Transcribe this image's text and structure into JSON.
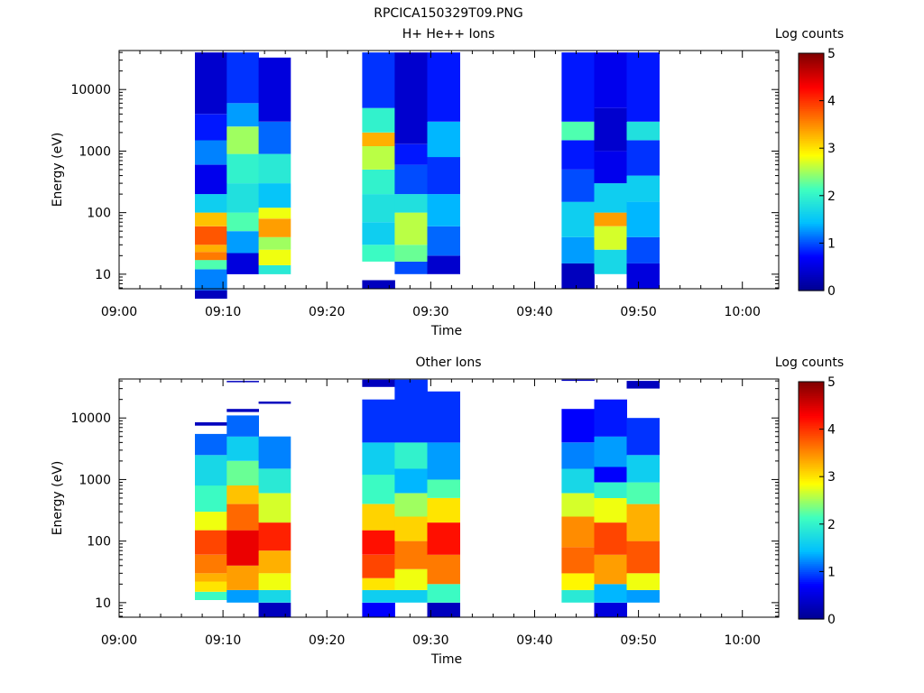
{
  "figure_title": "RPCICA150329T09.PNG",
  "colormap": [
    "#00008f",
    "#0000ff",
    "#00bfff",
    "#3fffbf",
    "#ffff00",
    "#ff7f00",
    "#ff0000",
    "#800000"
  ],
  "chart_data": [
    {
      "type": "heatmap",
      "title": "H+ He++ Ions",
      "xlabel": "Time",
      "ylabel": "Energy (eV)",
      "x_ticks": [
        "09:00",
        "09:10",
        "09:20",
        "09:30",
        "09:40",
        "09:50",
        "10:00"
      ],
      "x_range_minutes": [
        0,
        63.5
      ],
      "y_scale": "log",
      "y_range": [
        5.8,
        43000
      ],
      "y_ticks": [
        "10",
        "100",
        "1000",
        "10000"
      ],
      "colorbar": {
        "label": "Log counts",
        "range": [
          0,
          5
        ],
        "ticks": [
          "0",
          "1",
          "2",
          "3",
          "4",
          "5"
        ]
      },
      "blocks": [
        {
          "start_min": 7.3,
          "end_min": 16.5,
          "columns": 3
        },
        {
          "start_min": 23.4,
          "end_min": 32.8,
          "columns": 3
        },
        {
          "start_min": 42.6,
          "end_min": 52.0,
          "columns": 3
        }
      ],
      "columns": [
        [
          [
            4,
            5.5,
            0.3
          ],
          [
            5.5,
            12,
            1.2
          ],
          [
            12,
            17,
            2.2
          ],
          [
            17,
            23,
            3.6
          ],
          [
            23,
            30,
            3.3
          ],
          [
            30,
            60,
            3.8
          ],
          [
            60,
            100,
            3.2
          ],
          [
            100,
            200,
            1.6
          ],
          [
            200,
            600,
            0.6
          ],
          [
            600,
            1500,
            1.2
          ],
          [
            1500,
            4000,
            0.8
          ],
          [
            4000,
            40000,
            0.4
          ]
        ],
        [
          [
            10,
            22,
            0.5
          ],
          [
            22,
            50,
            1.3
          ],
          [
            50,
            100,
            2.2
          ],
          [
            100,
            300,
            1.8
          ],
          [
            300,
            900,
            2.0
          ],
          [
            900,
            2500,
            2.5
          ],
          [
            2500,
            6000,
            1.3
          ],
          [
            6000,
            40000,
            0.9
          ]
        ],
        [
          [
            10,
            14,
            1.9
          ],
          [
            14,
            25,
            2.8
          ],
          [
            25,
            40,
            2.5
          ],
          [
            40,
            80,
            3.4
          ],
          [
            80,
            120,
            2.8
          ],
          [
            120,
            300,
            1.5
          ],
          [
            300,
            900,
            1.9
          ],
          [
            900,
            3000,
            1.1
          ],
          [
            3000,
            33000,
            0.5
          ]
        ],
        [
          [
            5.8,
            8,
            0.3
          ],
          [
            16,
            30,
            2.1
          ],
          [
            30,
            70,
            1.6
          ],
          [
            70,
            200,
            1.8
          ],
          [
            200,
            500,
            2.0
          ],
          [
            500,
            1200,
            2.6
          ],
          [
            1200,
            2000,
            3.3
          ],
          [
            2000,
            5000,
            2.0
          ],
          [
            5000,
            40000,
            0.9
          ]
        ],
        [
          [
            10,
            16,
            1.0
          ],
          [
            16,
            30,
            2.3
          ],
          [
            30,
            100,
            2.6
          ],
          [
            100,
            200,
            1.8
          ],
          [
            200,
            600,
            1.0
          ],
          [
            600,
            1300,
            0.8
          ],
          [
            1300,
            40000,
            0.4
          ]
        ],
        [
          [
            10,
            20,
            0.4
          ],
          [
            20,
            60,
            1.1
          ],
          [
            60,
            200,
            1.4
          ],
          [
            200,
            800,
            0.9
          ],
          [
            800,
            3000,
            1.4
          ],
          [
            3000,
            40000,
            0.8
          ]
        ],
        [
          [
            5.8,
            15,
            0.3
          ],
          [
            15,
            40,
            1.3
          ],
          [
            40,
            150,
            1.6
          ],
          [
            150,
            500,
            1.0
          ],
          [
            500,
            1500,
            0.8
          ],
          [
            1500,
            3000,
            2.2
          ],
          [
            3000,
            40000,
            0.8
          ]
        ],
        [
          [
            10,
            25,
            1.7
          ],
          [
            25,
            60,
            2.7
          ],
          [
            60,
            100,
            3.4
          ],
          [
            100,
            300,
            1.6
          ],
          [
            300,
            1000,
            0.6
          ],
          [
            1000,
            5000,
            0.4
          ],
          [
            5000,
            40000,
            0.6
          ]
        ],
        [
          [
            5.8,
            15,
            0.5
          ],
          [
            15,
            40,
            1.0
          ],
          [
            40,
            150,
            1.4
          ],
          [
            150,
            400,
            1.6
          ],
          [
            400,
            1500,
            0.9
          ],
          [
            1500,
            3000,
            1.8
          ],
          [
            3000,
            40000,
            0.8
          ]
        ]
      ]
    },
    {
      "type": "heatmap",
      "title": "Other Ions",
      "xlabel": "Time",
      "ylabel": "Energy (eV)",
      "x_ticks": [
        "09:00",
        "09:10",
        "09:20",
        "09:30",
        "09:40",
        "09:50",
        "10:00"
      ],
      "x_range_minutes": [
        0,
        63.5
      ],
      "y_scale": "log",
      "y_range": [
        5.8,
        43000
      ],
      "y_ticks": [
        "10",
        "100",
        "1000",
        "10000"
      ],
      "colorbar": {
        "label": "Log counts",
        "range": [
          0,
          5
        ],
        "ticks": [
          "0",
          "1",
          "2",
          "3",
          "4",
          "5"
        ]
      },
      "blocks": [
        {
          "start_min": 7.3,
          "end_min": 16.5,
          "columns": 3
        },
        {
          "start_min": 23.4,
          "end_min": 32.8,
          "columns": 3
        },
        {
          "start_min": 42.6,
          "end_min": 52.0,
          "columns": 3
        }
      ],
      "columns": [
        [
          [
            11,
            15,
            2.1
          ],
          [
            15,
            22,
            3.0
          ],
          [
            22,
            30,
            3.3
          ],
          [
            30,
            60,
            3.6
          ],
          [
            60,
            150,
            3.9
          ],
          [
            150,
            300,
            2.8
          ],
          [
            300,
            800,
            2.1
          ],
          [
            800,
            2500,
            1.7
          ],
          [
            2500,
            5500,
            1.1
          ],
          [
            7500,
            8500,
            0.3
          ]
        ],
        [
          [
            10,
            16,
            1.3
          ],
          [
            16,
            40,
            3.4
          ],
          [
            40,
            150,
            4.4
          ],
          [
            150,
            400,
            3.7
          ],
          [
            400,
            800,
            3.2
          ],
          [
            800,
            2000,
            2.3
          ],
          [
            2000,
            5000,
            1.6
          ],
          [
            5000,
            11000,
            1.1
          ],
          [
            12500,
            14000,
            0.3
          ],
          [
            38000,
            40000,
            0.3
          ]
        ],
        [
          [
            5.8,
            10,
            0.3
          ],
          [
            10,
            16,
            1.7
          ],
          [
            16,
            30,
            2.8
          ],
          [
            30,
            70,
            3.3
          ],
          [
            70,
            200,
            4.1
          ],
          [
            200,
            600,
            2.7
          ],
          [
            600,
            1500,
            1.9
          ],
          [
            1500,
            5000,
            1.2
          ],
          [
            17000,
            18500,
            0.3
          ]
        ],
        [
          [
            5.8,
            10,
            0.7
          ],
          [
            10,
            16,
            1.6
          ],
          [
            16,
            25,
            3.0
          ],
          [
            25,
            60,
            3.9
          ],
          [
            60,
            150,
            4.2
          ],
          [
            150,
            400,
            3.1
          ],
          [
            400,
            1200,
            2.1
          ],
          [
            1200,
            4000,
            1.6
          ],
          [
            4000,
            20000,
            0.9
          ],
          [
            32000,
            42000,
            0.3
          ]
        ],
        [
          [
            10,
            16,
            1.6
          ],
          [
            16,
            35,
            2.8
          ],
          [
            35,
            100,
            3.6
          ],
          [
            100,
            250,
            3.1
          ],
          [
            250,
            600,
            2.5
          ],
          [
            600,
            1500,
            1.4
          ],
          [
            1500,
            4000,
            2.0
          ],
          [
            4000,
            42000,
            0.9
          ]
        ],
        [
          [
            5.8,
            10,
            0.3
          ],
          [
            10,
            20,
            2.1
          ],
          [
            20,
            60,
            3.6
          ],
          [
            60,
            200,
            4.2
          ],
          [
            200,
            500,
            3.0
          ],
          [
            500,
            1000,
            2.2
          ],
          [
            1000,
            4000,
            1.3
          ],
          [
            4000,
            27000,
            0.9
          ]
        ],
        [
          [
            10,
            16,
            1.9
          ],
          [
            16,
            30,
            2.9
          ],
          [
            30,
            80,
            3.7
          ],
          [
            80,
            250,
            3.5
          ],
          [
            250,
            600,
            2.7
          ],
          [
            600,
            1500,
            1.7
          ],
          [
            1500,
            4000,
            1.2
          ],
          [
            4000,
            14000,
            0.7
          ],
          [
            40000,
            42000,
            0.3
          ]
        ],
        [
          [
            5.8,
            10,
            0.5
          ],
          [
            10,
            20,
            1.4
          ],
          [
            20,
            60,
            3.4
          ],
          [
            60,
            200,
            3.9
          ],
          [
            200,
            500,
            2.8
          ],
          [
            500,
            900,
            2.0
          ],
          [
            900,
            1600,
            0.7
          ],
          [
            1600,
            5000,
            1.3
          ],
          [
            5000,
            20000,
            0.8
          ]
        ],
        [
          [
            10,
            16,
            1.3
          ],
          [
            16,
            30,
            2.8
          ],
          [
            30,
            100,
            3.8
          ],
          [
            100,
            400,
            3.3
          ],
          [
            400,
            900,
            2.2
          ],
          [
            900,
            2500,
            1.6
          ],
          [
            2500,
            10000,
            0.9
          ],
          [
            30000,
            40000,
            0.3
          ]
        ]
      ]
    }
  ]
}
